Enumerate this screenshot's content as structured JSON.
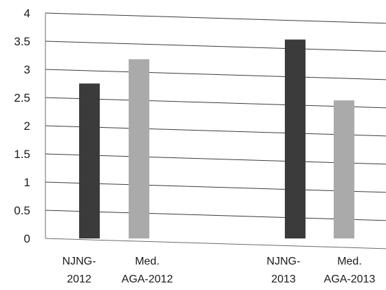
{
  "chart_data": {
    "type": "bar",
    "title": "",
    "xlabel": "",
    "ylabel": "",
    "ylim": [
      0,
      4
    ],
    "yticks": [
      "0",
      "0.5",
      "1",
      "1.5",
      "2",
      "2.5",
      "3",
      "3.5",
      "4"
    ],
    "grid": true,
    "legend": "none",
    "categories": [
      {
        "lines": [
          "NJNG-",
          "2012"
        ],
        "value": 2.75,
        "color": "#3b3b3b"
      },
      {
        "lines": [
          "Med.",
          "AGA-2012"
        ],
        "value": 3.18,
        "color": "#aaaaaa"
      },
      {
        "lines": [
          "NJNG-",
          "2013"
        ],
        "value": 3.53,
        "color": "#3b3b3b"
      },
      {
        "lines": [
          "Med.",
          "AGA-2013"
        ],
        "value": 2.45,
        "color": "#aaaaaa"
      }
    ]
  }
}
